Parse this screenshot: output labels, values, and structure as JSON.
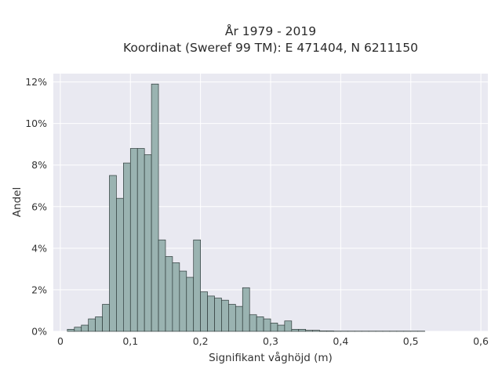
{
  "chart_data": {
    "type": "bar",
    "title": [
      "År 1979 - 2019",
      "Koordinat (Sweref 99 TM): E 471404, N 6211150"
    ],
    "xlabel": "Signifikant våghöjd (m)",
    "ylabel": "Andel",
    "xlim": [
      -0.01,
      0.61
    ],
    "ylim": [
      0,
      12.4
    ],
    "x_ticks": [
      0,
      0.1,
      0.2,
      0.3,
      0.4,
      0.5,
      0.6
    ],
    "x_tick_labels": [
      "0",
      "0,1",
      "0,2",
      "0,3",
      "0,4",
      "0,5",
      "0,6"
    ],
    "y_ticks": [
      0,
      2,
      4,
      6,
      8,
      10,
      12
    ],
    "y_tick_labels": [
      "0%",
      "2%",
      "4%",
      "6%",
      "8%",
      "10%",
      "12%"
    ],
    "bin_width": 0.01,
    "bin_starts": [
      0.01,
      0.02,
      0.03,
      0.04,
      0.05,
      0.06,
      0.07,
      0.08,
      0.09,
      0.1,
      0.11,
      0.12,
      0.13,
      0.14,
      0.15,
      0.16,
      0.17,
      0.18,
      0.19,
      0.2,
      0.21,
      0.22,
      0.23,
      0.24,
      0.25,
      0.26,
      0.27,
      0.28,
      0.29,
      0.3,
      0.31,
      0.32,
      0.33,
      0.34,
      0.35,
      0.36,
      0.37,
      0.38,
      0.39,
      0.4,
      0.41,
      0.42,
      0.43,
      0.44,
      0.45,
      0.46,
      0.47,
      0.48,
      0.49,
      0.5,
      0.51
    ],
    "values": [
      0.1,
      0.2,
      0.3,
      0.6,
      0.7,
      1.3,
      7.5,
      6.4,
      8.1,
      8.8,
      8.8,
      8.5,
      11.9,
      4.4,
      3.6,
      3.3,
      2.9,
      2.6,
      4.4,
      1.9,
      1.7,
      1.6,
      1.5,
      1.3,
      1.2,
      2.1,
      0.8,
      0.7,
      0.6,
      0.4,
      0.3,
      0.5,
      0.1,
      0.1,
      0.05,
      0.05,
      0.02,
      0.02,
      0.01,
      0.01,
      0.01,
      0.01,
      0.01,
      0.01,
      0.01,
      0.01,
      0.01,
      0.01,
      0.01,
      0.01,
      0.01
    ],
    "grid": true,
    "legend": "none",
    "colors": {
      "bar_fill": "#9ab3b1",
      "bar_edge": "#2f3b3a",
      "plot_bg": "#e9e9f1",
      "grid": "#ffffff"
    }
  }
}
